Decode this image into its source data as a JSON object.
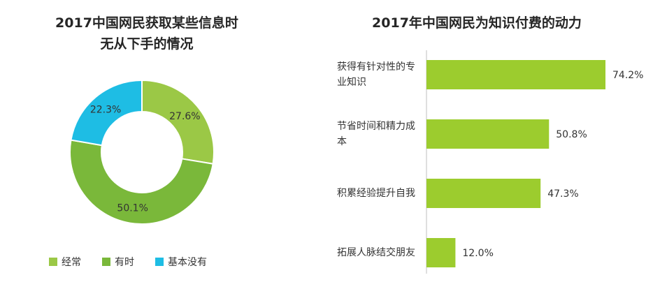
{
  "chart_data": [
    {
      "type": "pie",
      "title": "2017中国网民获取某些信息时无从下手的情况",
      "title_lines": [
        "2017中国网民获取某些信息时",
        "无从下手的情况"
      ],
      "categories": [
        "经常",
        "有时",
        "基本没有"
      ],
      "values": [
        27.6,
        50.1,
        22.3
      ],
      "value_labels": [
        "27.6%",
        "50.1%",
        "22.3%"
      ],
      "colors": [
        "#9bc846",
        "#7ab83a",
        "#1ebde4"
      ],
      "donut": true,
      "legend": "bottom"
    },
    {
      "type": "bar",
      "orientation": "horizontal",
      "title": "2017年中国网民为知识付费的动力",
      "categories": [
        "获得有针对性的专业知识",
        "节省时间和精力成本",
        "积累经验提升自我",
        "拓展人脉结交朋友"
      ],
      "values": [
        74.2,
        50.8,
        47.3,
        12.0
      ],
      "value_labels": [
        "74.2%",
        "50.8%",
        "47.3%",
        "12.0%"
      ],
      "xlim": [
        0,
        80
      ],
      "color": "#9ccc2e",
      "axis_color": "#bfbfbf"
    }
  ]
}
